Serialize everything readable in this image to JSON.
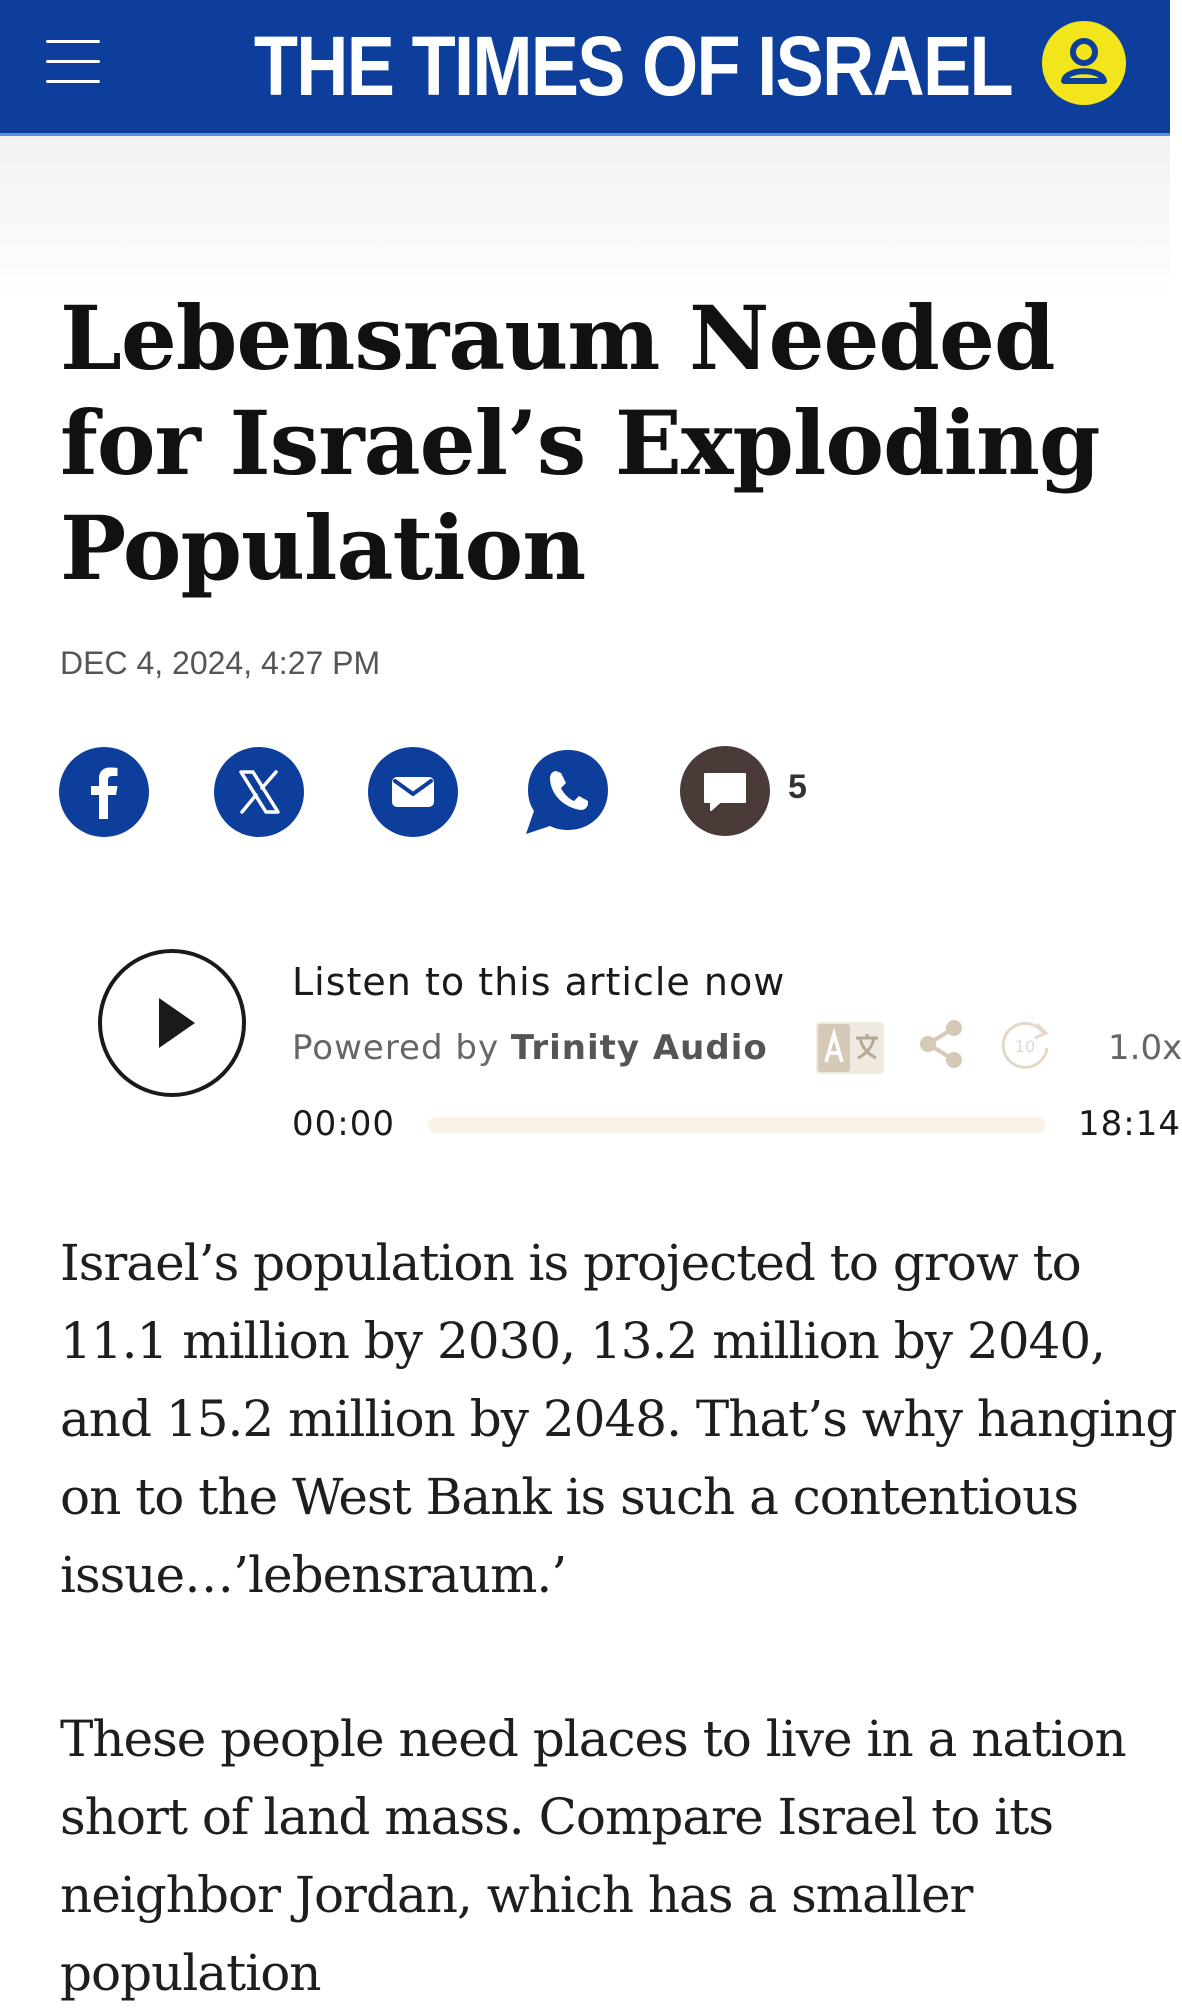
{
  "header": {
    "site_name": "THE TIMES OF ISRAEL",
    "menu_icon": "hamburger-menu-icon",
    "user_icon": "user-profile-icon",
    "colors": {
      "bar": "#0d3e9c",
      "user_badge": "#f3e51b"
    }
  },
  "article": {
    "title": "Lebensraum Needed for Israel’s Exploding Population",
    "date": "DEC 4, 2024, 4:27 PM",
    "paragraphs": [
      "Israel’s population is projected to grow to 11.1 million by 2030, 13.2 million by 2040, and 15.2 million by 2048. That’s why hanging on to the West Bank is such a contentious issue…’lebensraum.’",
      "These people need places to live in a nation short of land mass. Compare Israel to its neighbor Jordan, which has a smaller population"
    ]
  },
  "share": {
    "icons": [
      "facebook-icon",
      "x-icon",
      "email-icon",
      "whatsapp-icon",
      "comment-icon"
    ],
    "comment_count": "5"
  },
  "audio": {
    "title": "Listen to this article now",
    "powered_prefix": "Powered by",
    "powered_brand": "Trinity Audio",
    "current_time": "00:00",
    "total_time": "18:14",
    "speed": "1.0x",
    "progress": 0,
    "forward_label": "10"
  }
}
